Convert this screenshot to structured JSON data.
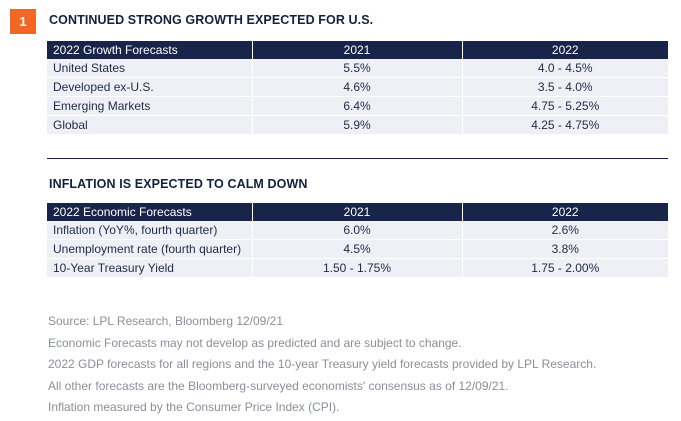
{
  "badge": "1",
  "section1": {
    "title": "CONTINUED STRONG GROWTH EXPECTED FOR U.S.",
    "headers": [
      "2022 Growth Forecasts",
      "2021",
      "2022"
    ],
    "rows": [
      [
        "United States",
        "5.5%",
        "4.0 - 4.5%"
      ],
      [
        "Developed ex-U.S.",
        "4.6%",
        "3.5 - 4.0%"
      ],
      [
        "Emerging Markets",
        "6.4%",
        "4.75 - 5.25%"
      ],
      [
        "Global",
        "5.9%",
        "4.25 - 4.75%"
      ]
    ]
  },
  "section2": {
    "title": "INFLATION IS EXPECTED TO CALM DOWN",
    "headers": [
      "2022 Economic Forecasts",
      "2021",
      "2022"
    ],
    "rows": [
      [
        "Inflation (YoY%, fourth quarter)",
        "6.0%",
        "2.6%"
      ],
      [
        "Unemployment rate (fourth quarter)",
        "4.5%",
        "3.8%"
      ],
      [
        "10-Year Treasury Yield",
        "1.50 - 1.75%",
        "1.75 - 2.00%"
      ]
    ]
  },
  "notes": [
    "Source: LPL Research, Bloomberg   12/09/21",
    "Economic Forecasts may not develop as predicted and are subject to change.",
    "2022 GDP forecasts for all regions and the 10-year Treasury yield forecasts provided by LPL Research.",
    "All other forecasts are the Bloomberg-surveyed economists' consensus as of 12/09/21.",
    "Inflation measured by the Consumer Price Index (CPI)."
  ],
  "colors": {
    "accent": "#f26722",
    "header_bg": "#18244a",
    "row_bg": "#eef0f5",
    "note_text": "#8a8f99"
  }
}
